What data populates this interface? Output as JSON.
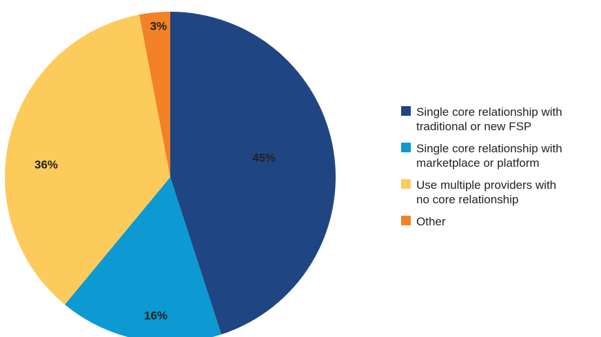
{
  "chart_data": {
    "type": "pie",
    "slices": [
      {
        "name": "Single core relationship with traditional or new FSP",
        "value": 45,
        "label": "45%",
        "color": "#1f4682"
      },
      {
        "name": "Single core relationship with marketplace or platform",
        "value": 16,
        "label": "16%",
        "color": "#0d99d2"
      },
      {
        "name": "Use multiple providers with no core relationship",
        "value": 36,
        "label": "36%",
        "color": "#fdcb5c"
      },
      {
        "name": "Other",
        "value": 3,
        "label": "3%",
        "color": "#f38125"
      }
    ],
    "start": "12 o'clock",
    "direction": "clockwise",
    "legend_position": "right"
  },
  "legend": {
    "items": [
      {
        "line1": "Single core relationship with",
        "line2": "traditional or new FSP",
        "color": "#1f4682"
      },
      {
        "line1": "Single core relationship with",
        "line2": "marketplace or platform",
        "color": "#0d99d2"
      },
      {
        "line1": "Use multiple providers with",
        "line2": "no core relationship",
        "color": "#fdcb5c"
      },
      {
        "line1": "Other",
        "line2": "",
        "color": "#f38125"
      }
    ]
  }
}
